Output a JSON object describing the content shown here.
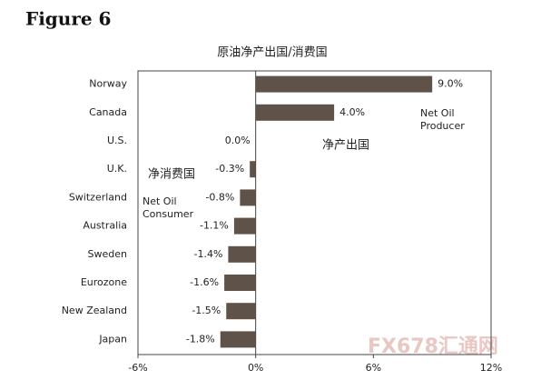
{
  "figure_label": "Figure 6",
  "watermark": "FX678汇通网",
  "chart_data": {
    "type": "barh",
    "title": "原油净产出国/消费国",
    "categories": [
      "Norway",
      "Canada",
      "U.S.",
      "U.K.",
      "Switzerland",
      "Australia",
      "Sweden",
      "Eurozone",
      "New Zealand",
      "Japan"
    ],
    "values": [
      9.0,
      4.0,
      0.0,
      -0.3,
      -0.8,
      -1.1,
      -1.4,
      -1.6,
      -1.5,
      -1.8
    ],
    "value_labels": [
      "9.0%",
      "4.0%",
      "0.0%",
      "-0.3%",
      "-0.8%",
      "-1.1%",
      "-1.4%",
      "-1.6%",
      "-1.5%",
      "-1.8%"
    ],
    "color": "#5f5248",
    "xlim": [
      -6,
      12
    ],
    "xticks": [
      {
        "value": -6,
        "label": "-6%"
      },
      {
        "value": 0,
        "label": "0%"
      },
      {
        "value": 6,
        "label": "6%"
      },
      {
        "value": 12,
        "label": "12%"
      }
    ],
    "grid": false,
    "annotations": {
      "producer_en": [
        "Net Oil",
        "Producer"
      ],
      "producer_cn": "净产出国",
      "consumer_cn": "净消费国",
      "consumer_en": [
        "Net Oil",
        "Consumer"
      ]
    }
  }
}
